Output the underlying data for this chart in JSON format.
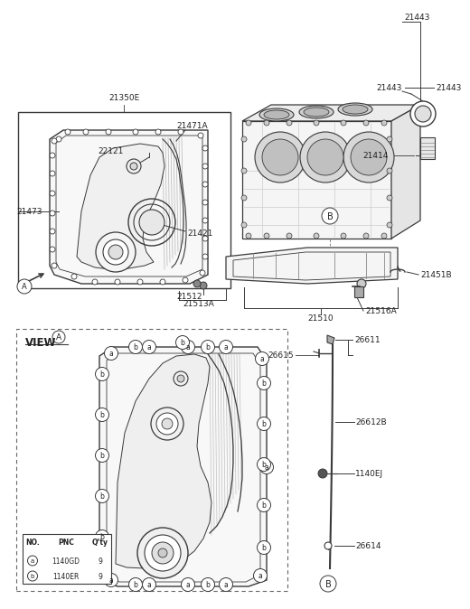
{
  "bg_color": "#ffffff",
  "line_color": "#3a3a3a",
  "gray": "#888888",
  "light_gray": "#d8d8d8",
  "part_numbers": {
    "top_left_box_label": "21350E",
    "p21471A": "21471A",
    "p22121": "22121",
    "p21473": "21473",
    "p21421": "21421",
    "p21443": "21443",
    "p21414": "21414",
    "p21451B": "21451B",
    "p21516A": "21516A",
    "p21512": "21512",
    "p21513A": "21513A",
    "p21510": "21510",
    "view_a_label": "VIEW",
    "p26611": "26611",
    "p26612B": "26612B",
    "p1140EJ": "1140EJ",
    "p26614": "26614",
    "p26615": "26615",
    "table_no": "NO.",
    "table_pnc": "PNC",
    "table_qty": "Q’ty",
    "row_a_pnc": "1140GD",
    "row_a_qty": "9",
    "row_b_pnc": "1140ER",
    "row_b_qty": "9"
  },
  "fs": 6.5,
  "fs_small": 5.5,
  "fs_big": 8.0
}
